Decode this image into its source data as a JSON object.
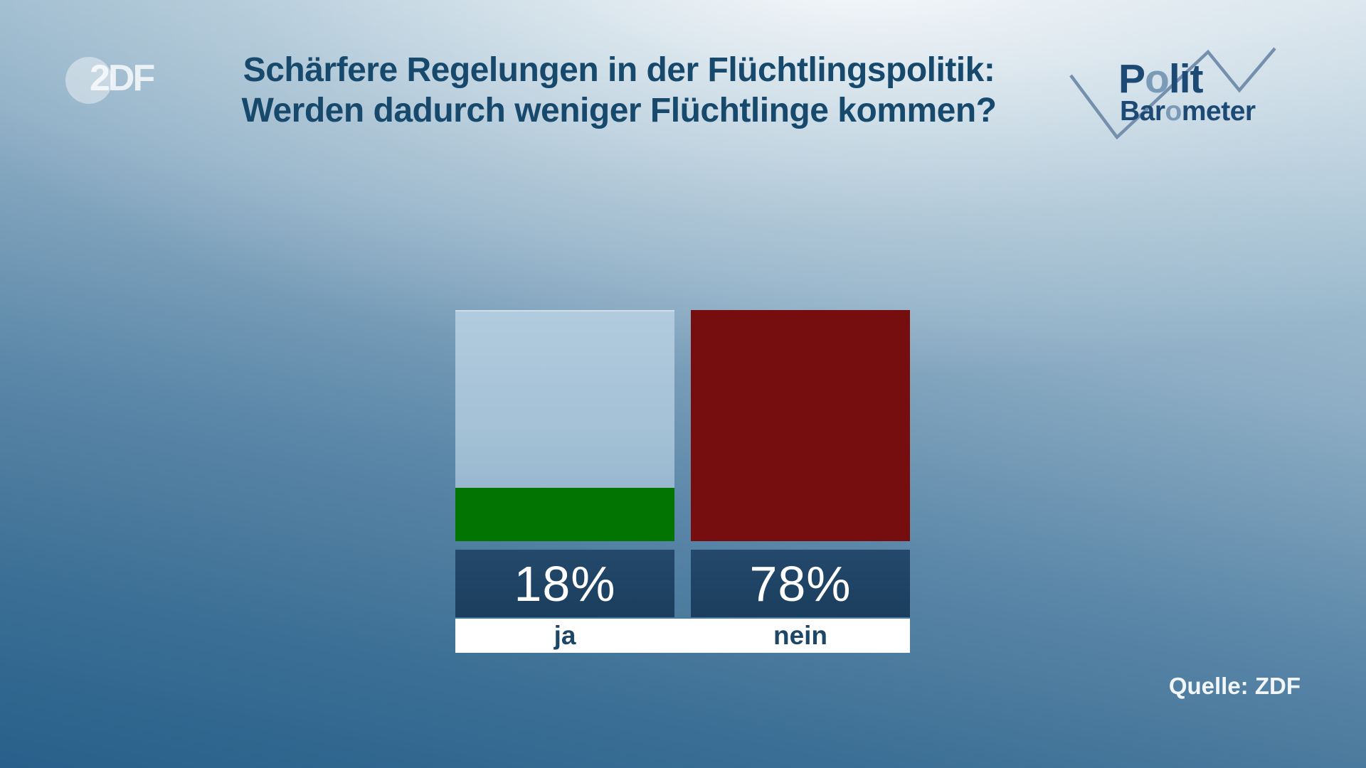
{
  "header": {
    "zdf_logo_text": "2DF",
    "title_line1": "Schärfere Regelungen in der Flüchtlingspolitik:",
    "title_line2": "Werden dadurch weniger Flüchtlinge kommen?",
    "politbarometer": {
      "word1_part1": "P",
      "word1_o": "o",
      "word1_part2": "lit",
      "word2_part1": "Bar",
      "word2_o": "o",
      "word2_part2": "meter"
    }
  },
  "chart_data": {
    "type": "bar",
    "title": "Schärfere Regelungen in der Flüchtlingspolitik: Werden dadurch weniger Flüchtlinge kommen?",
    "categories": [
      "ja",
      "nein"
    ],
    "values": [
      18,
      78
    ],
    "value_labels": [
      "18%",
      "78%"
    ],
    "ylim": [
      0,
      78
    ],
    "grid": "off",
    "legend": "none",
    "colors": {
      "ja_fill": "#027402",
      "nein_fill": "#760d0f",
      "bar_background": "#a9c6da",
      "value_box": "#1d4161",
      "value_text": "#ffffff",
      "category_text": "#1d4766",
      "category_strip": "#ffffff",
      "title_text": "#17496d",
      "logo_dark": "#1d4a74",
      "logo_light": "#7b9ab8",
      "zigzag_line": "#7590ad"
    },
    "source": "Quelle: ZDF"
  },
  "footer": {
    "source_label": "Quelle: ZDF"
  }
}
